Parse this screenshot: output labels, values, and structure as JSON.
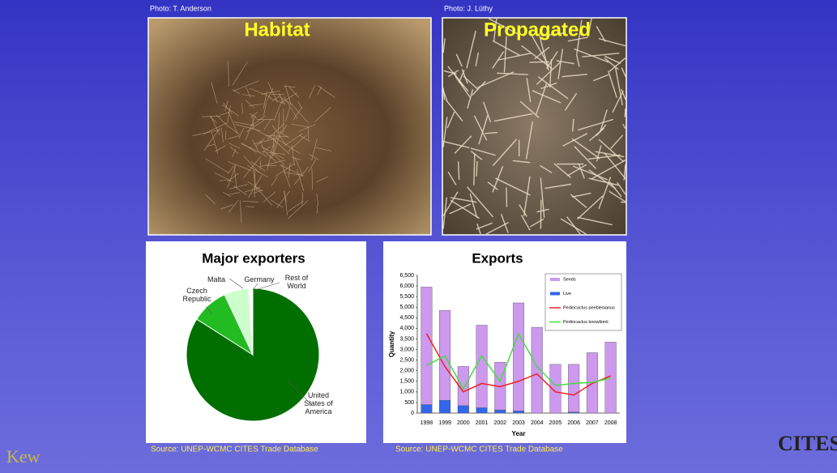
{
  "photos": [
    {
      "credit": "Photo: T. Anderson",
      "label": "Habitat"
    },
    {
      "credit": "Photo: J. Lüthy",
      "label": "Propagated"
    }
  ],
  "sources": [
    "Source: UNEP-WCMC CITES Trade Database",
    "Source: UNEP-WCMC CITES Trade Database"
  ],
  "logos": {
    "left": "Kew",
    "right": "CITES"
  },
  "chart_data": [
    {
      "type": "pie",
      "title": "Major exporters",
      "categories": [
        "United States of America",
        "Czech Republic",
        "Germany",
        "Malta",
        "Rest of World"
      ],
      "values": [
        84,
        9,
        6,
        0.5,
        0.5
      ],
      "colors": [
        "#006f00",
        "#22bb22",
        "#ccffcc",
        "#eeffee",
        "#ffffff"
      ]
    },
    {
      "type": "bar",
      "title": "Exports",
      "xlabel": "Year",
      "ylabel": "Quantity",
      "stacked": true,
      "categories": [
        "1998",
        "1999",
        "2000",
        "2001",
        "2002",
        "2003",
        "2004",
        "2005",
        "2006",
        "2007",
        "2008"
      ],
      "ylim": [
        0,
        6500
      ],
      "yticks": [
        0,
        500,
        {
          "value": 1000,
          "label": "1,000"
        },
        {
          "value": 1500,
          "label": "1,500"
        },
        {
          "value": 2000,
          "label": "2,000"
        },
        {
          "value": 2500,
          "label": "2,500"
        },
        {
          "value": 3000,
          "label": "3,000"
        },
        {
          "value": 3500,
          "label": "3,500"
        },
        {
          "value": 4000,
          "label": "4,000"
        },
        {
          "value": 4500,
          "label": "4,500"
        },
        {
          "value": 5000,
          "label": "5,000"
        },
        {
          "value": 5500,
          "label": "5,500"
        },
        {
          "value": 6000,
          "label": "6,000"
        },
        {
          "value": 6500,
          "label": "6,500"
        }
      ],
      "series": [
        {
          "name": "Live",
          "type": "bar",
          "color": "#3366ee",
          "values": [
            400,
            600,
            350,
            250,
            150,
            100,
            0,
            0,
            50,
            0,
            0
          ]
        },
        {
          "name": "Seeds",
          "type": "bar",
          "color": "#cc99ee",
          "values": [
            5550,
            4250,
            1850,
            3900,
            2250,
            5100,
            4050,
            2300,
            2250,
            2850,
            3350
          ]
        },
        {
          "name": "Pediocactus peeblesianus",
          "type": "line",
          "color": "#ee2222",
          "values": [
            3750,
            2200,
            1000,
            1400,
            1250,
            1500,
            1850,
            1000,
            850,
            1400,
            1750
          ]
        },
        {
          "name": "Pediocactus knowltonii",
          "type": "line",
          "color": "#44dd44",
          "values": [
            2250,
            2700,
            1150,
            2700,
            1500,
            3750,
            2200,
            1300,
            1400,
            1450,
            1650
          ]
        }
      ],
      "legend_order": [
        1,
        0,
        2,
        3
      ]
    }
  ]
}
